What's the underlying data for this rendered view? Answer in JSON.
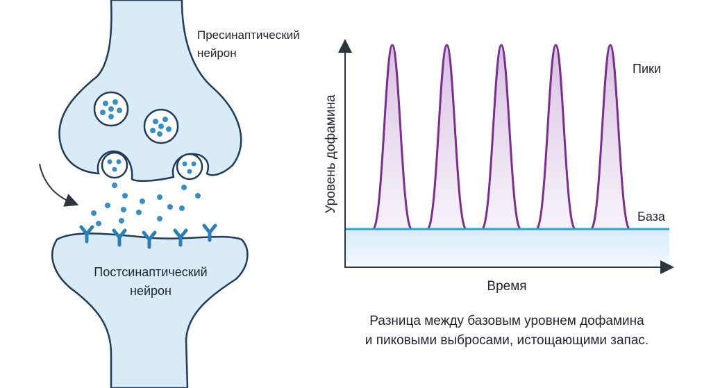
{
  "synapse": {
    "presynaptic_label_line1": "Пресинаптический",
    "presynaptic_label_line2": "нейрон",
    "postsynaptic_label_line1": "Постсинаптический",
    "postsynaptic_label_line2": "нейрон"
  },
  "graph": {
    "ylabel": "Уровень дофамина",
    "xlabel": "Время",
    "peaks_label": "Пики",
    "baseline_label": "База",
    "peak_count": 5,
    "peak_color": "#7a2f8f",
    "baseline_color": "#2aa3d6"
  },
  "caption": {
    "line1": "Разница между базовым уровнем дофамина",
    "line2": "и пиковыми выбросами, истощающими запас."
  },
  "colors": {
    "neuron_fill": "#d9ebf7",
    "neuron_stroke": "#1e3a5c",
    "vesicle_dot": "#3a8ec6"
  }
}
